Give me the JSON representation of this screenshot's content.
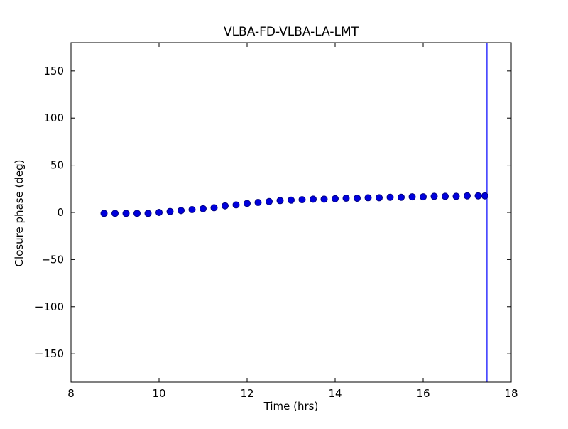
{
  "figure": {
    "background": "#ffffff",
    "axes_color": "#000000"
  },
  "chart_data": {
    "type": "scatter",
    "title": "VLBA-FD-VLBA-LA-LMT",
    "xlabel": "Time (hrs)",
    "ylabel": "Closure phase (deg)",
    "xlim": [
      8,
      18
    ],
    "ylim": [
      -180,
      180
    ],
    "xticks": [
      8,
      10,
      12,
      14,
      16,
      18
    ],
    "yticks": [
      -150,
      -100,
      -50,
      0,
      50,
      100,
      150
    ],
    "grid": false,
    "legend": "none",
    "series": [
      {
        "name": "closure-phase-points",
        "marker": "circle",
        "marker_color": "#0000dd",
        "marker_edge_color": "#000080",
        "x": [
          8.75,
          9.0,
          9.25,
          9.5,
          9.75,
          10.0,
          10.25,
          10.5,
          10.75,
          11.0,
          11.25,
          11.5,
          11.75,
          12.0,
          12.25,
          12.5,
          12.75,
          13.0,
          13.25,
          13.5,
          13.75,
          14.0,
          14.25,
          14.5,
          14.75,
          15.0,
          15.25,
          15.5,
          15.75,
          16.0,
          16.25,
          16.5,
          16.75,
          17.0,
          17.25,
          17.4
        ],
        "y": [
          -1,
          -1,
          -1,
          -1,
          -1,
          0,
          1,
          2,
          3,
          4,
          5,
          7,
          8,
          9.5,
          10.5,
          11.5,
          12.5,
          13,
          13.5,
          14,
          14,
          14.5,
          15,
          15,
          15.5,
          15.5,
          16,
          16,
          16.5,
          16.5,
          17,
          17,
          17,
          17.5,
          17.5,
          17.5
        ]
      }
    ],
    "vline": {
      "x": 17.45,
      "color": "#0000ff"
    }
  }
}
